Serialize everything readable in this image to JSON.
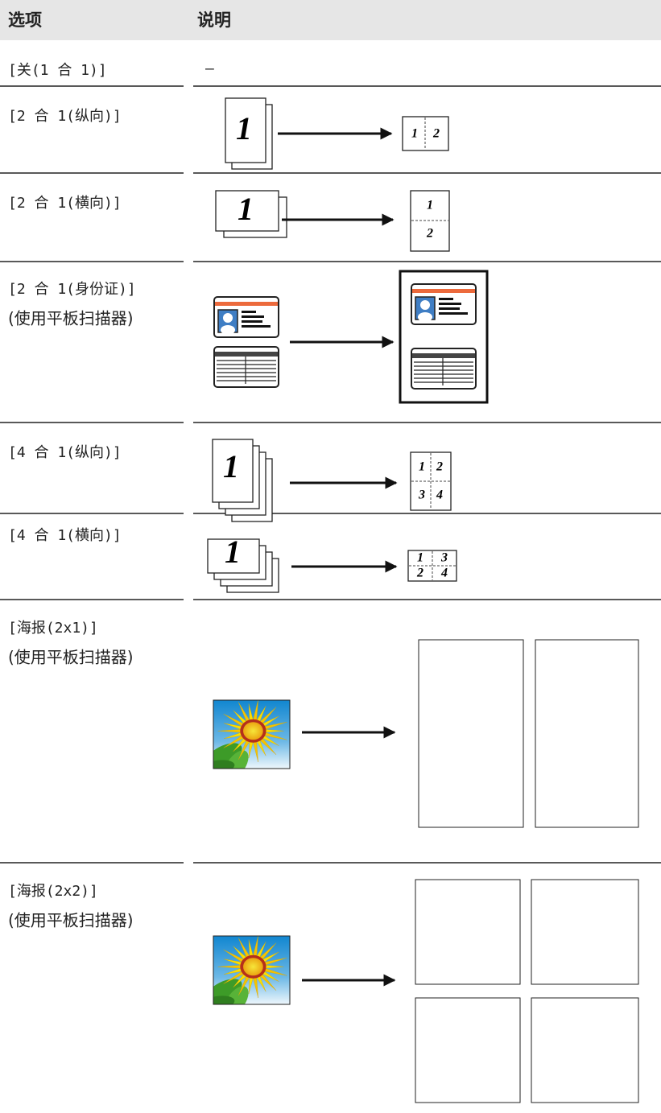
{
  "table": {
    "header": [
      "选项",
      "说明"
    ],
    "rows": [
      {
        "option": [
          "[关(1 合 1)]"
        ],
        "description": "–"
      },
      {
        "option": [
          "[2 合 1(纵向)]"
        ],
        "diagram": {
          "source": "1",
          "result": [
            "1",
            "2"
          ]
        }
      },
      {
        "option": [
          "[2 合 1(横向)]"
        ],
        "diagram": {
          "source": "1",
          "result": [
            "1",
            "2"
          ]
        }
      },
      {
        "option": [
          "[2 合 1(身份证)]",
          "(使用平板扫描器)"
        ]
      },
      {
        "option": [
          "[4 合 1(纵向)]"
        ],
        "diagram": {
          "source": "1",
          "result": [
            "1",
            "2",
            "3",
            "4"
          ]
        }
      },
      {
        "option": [
          "[4 合 1(横向)]"
        ],
        "diagram": {
          "source": "1",
          "result": [
            "1",
            "3",
            "2",
            "4"
          ]
        }
      },
      {
        "option": [
          "[海报(2x1)]",
          "(使用平板扫描器)"
        ]
      },
      {
        "option": [
          "[海报(2x2)]",
          "(使用平板扫描器)"
        ]
      }
    ]
  }
}
